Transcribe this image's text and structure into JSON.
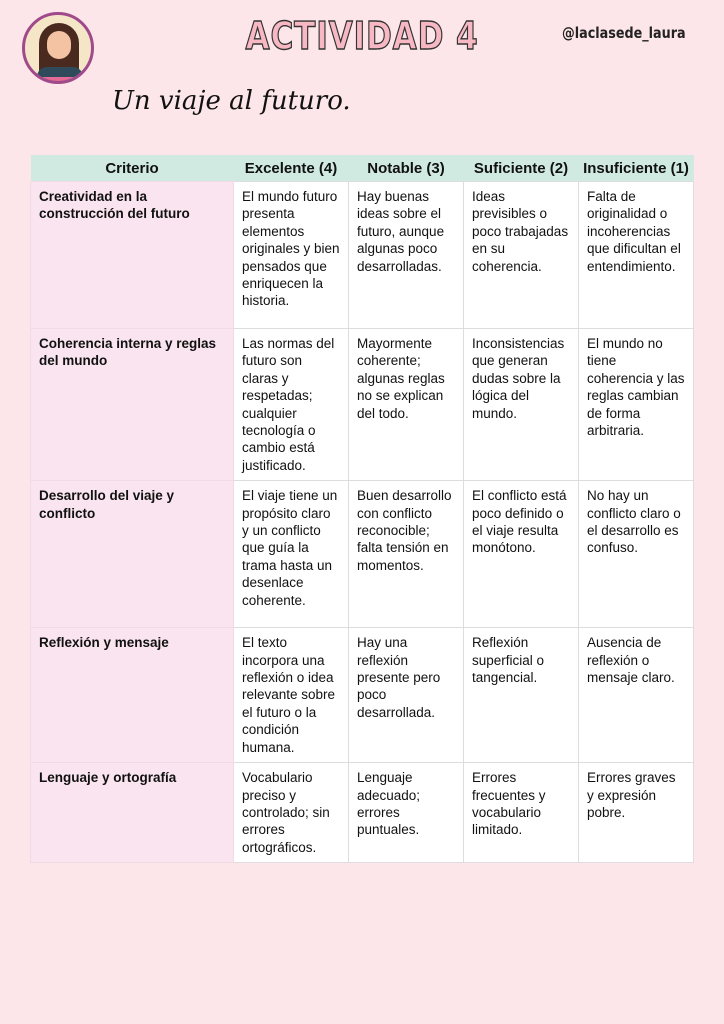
{
  "header": {
    "title": "ACTIVIDAD 4",
    "handle": "@laclasede_laura",
    "subtitle": "Un viaje al futuro."
  },
  "table": {
    "columns": [
      "Criterio",
      "Excelente (4)",
      "Notable (3)",
      "Suficiente (2)",
      "Insuficiente (1)"
    ],
    "rows": [
      {
        "criterio": "Creatividad en la construcción del futuro",
        "cells": [
          "El mundo futuro presenta elementos originales y bien pensados que enriquecen la historia.",
          "Hay buenas ideas sobre el futuro, aunque algunas poco desarrolladas.",
          "Ideas previsibles o poco trabajadas en su coherencia.",
          "Falta de originalidad o incoherencias que dificultan el entendimiento."
        ]
      },
      {
        "criterio": "Coherencia interna y reglas del mundo",
        "cells": [
          "Las normas del futuro son claras y respetadas; cualquier tecnología o cambio está justificado.",
          "Mayormente coherente; algunas reglas no se explican del todo.",
          "Inconsistencias que generan dudas sobre la lógica del mundo.",
          "El mundo no tiene coherencia y las reglas cambian de forma arbitraria."
        ]
      },
      {
        "criterio": "Desarrollo del viaje y conflicto",
        "cells": [
          "El viaje tiene un propósito claro y un conflicto que guía la trama hasta un desenlace coherente.",
          "Buen desarrollo con conflicto reconocible; falta tensión en momentos.",
          "El conflicto está poco definido o el viaje resulta monótono.",
          "No hay un conflicto claro o el desarrollo es confuso."
        ]
      },
      {
        "criterio": "Reflexión y mensaje",
        "cells": [
          "El texto incorpora una reflexión o idea relevante sobre el futuro o la condición humana.",
          "Hay una reflexión presente pero poco desarrollada.",
          "Reflexión superficial o tangencial.",
          "Ausencia de reflexión o mensaje claro."
        ]
      },
      {
        "criterio": "Lenguaje y ortografía",
        "cells": [
          "Vocabulario preciso y controlado; sin errores ortográficos.",
          "Lenguaje adecuado; errores puntuales.",
          "Errores frecuentes y vocabulario limitado.",
          "Errores graves y expresión pobre."
        ]
      }
    ]
  }
}
